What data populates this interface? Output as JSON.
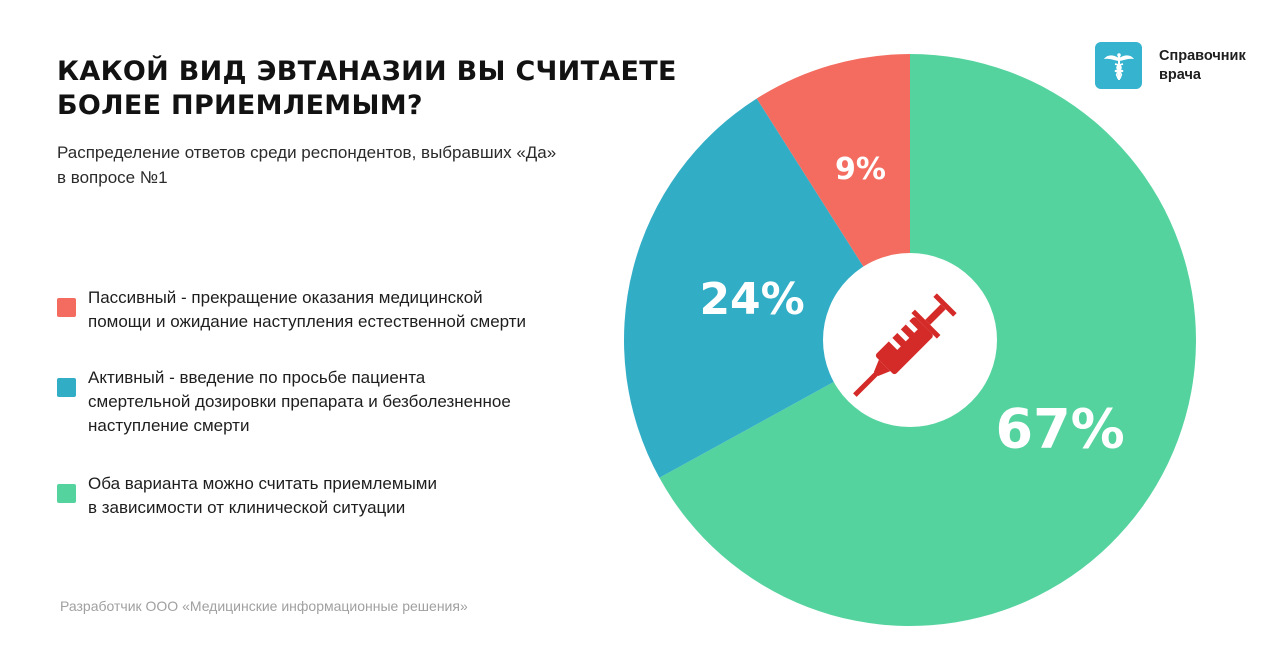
{
  "title": "КАКОЙ ВИД ЭВТАНАЗИИ ВЫ СЧИТАЕТЕ\nБОЛЕЕ ПРИЕМЛЕМЫМ?",
  "subtitle": "Распределение ответов среди респондентов, выбравших «Да»\nв вопросе №1",
  "brand": {
    "name": "Справочник\nврача",
    "icon": "caduceus-icon",
    "color": "#35b3cf"
  },
  "footer": "Разработчик ООО «Медицинские информационные решения»",
  "center_icon": "syringe-icon",
  "chart_data": {
    "type": "pie",
    "start_angle_deg": 0,
    "direction": "clockwise",
    "slices": [
      {
        "key": "both",
        "legend": "Оба варианта можно считать приемлемыми\nв зависимости от клинической ситуации",
        "value": 67,
        "label": "67%",
        "color": "#55d39f"
      },
      {
        "key": "active",
        "legend": "Активный - введение по просьбе пациента\nсмертельной дозировки препарата и безболезненное\nнаступление смерти",
        "value": 24,
        "label": "24%",
        "color": "#32adc6"
      },
      {
        "key": "passive",
        "legend": "Пассивный - прекращение оказания медицинской\nпомощи и ожидание наступления естественной смерти",
        "value": 9,
        "label": "9%",
        "color": "#f36c5f"
      }
    ],
    "legend_order": [
      "passive",
      "active",
      "both"
    ],
    "center_hole": true
  }
}
